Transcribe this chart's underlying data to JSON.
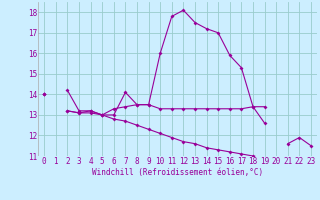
{
  "xlabel": "Windchill (Refroidissement éolien,°C)",
  "background_color": "#cceeff",
  "grid_color": "#99cccc",
  "line_color": "#990099",
  "x_hours": [
    0,
    1,
    2,
    3,
    4,
    5,
    6,
    7,
    8,
    9,
    10,
    11,
    12,
    13,
    14,
    15,
    16,
    17,
    18,
    19,
    20,
    21,
    22,
    23
  ],
  "line1": [
    14.0,
    null,
    14.2,
    13.2,
    13.2,
    13.0,
    13.0,
    14.1,
    13.5,
    13.5,
    16.0,
    17.8,
    18.1,
    17.5,
    17.2,
    17.0,
    15.9,
    15.3,
    13.4,
    12.6,
    null,
    11.6,
    11.9,
    11.5
  ],
  "line2": [
    14.0,
    null,
    13.2,
    13.1,
    13.2,
    13.0,
    13.3,
    13.4,
    13.5,
    13.5,
    13.3,
    13.3,
    13.3,
    13.3,
    13.3,
    13.3,
    13.3,
    13.3,
    13.4,
    13.4,
    null,
    null,
    null,
    null
  ],
  "line3": [
    14.0,
    null,
    13.2,
    13.1,
    13.1,
    13.0,
    12.8,
    12.7,
    12.5,
    12.3,
    12.1,
    11.9,
    11.7,
    11.6,
    11.4,
    11.3,
    11.2,
    11.1,
    11.0,
    10.9,
    null,
    null,
    null,
    null
  ],
  "ylim": [
    11,
    18.5
  ],
  "xlim": [
    -0.5,
    23.5
  ],
  "yticks": [
    11,
    12,
    13,
    14,
    15,
    16,
    17,
    18
  ],
  "xticks": [
    0,
    1,
    2,
    3,
    4,
    5,
    6,
    7,
    8,
    9,
    10,
    11,
    12,
    13,
    14,
    15,
    16,
    17,
    18,
    19,
    20,
    21,
    22,
    23
  ],
  "tick_fontsize": 5.5,
  "xlabel_fontsize": 5.5
}
